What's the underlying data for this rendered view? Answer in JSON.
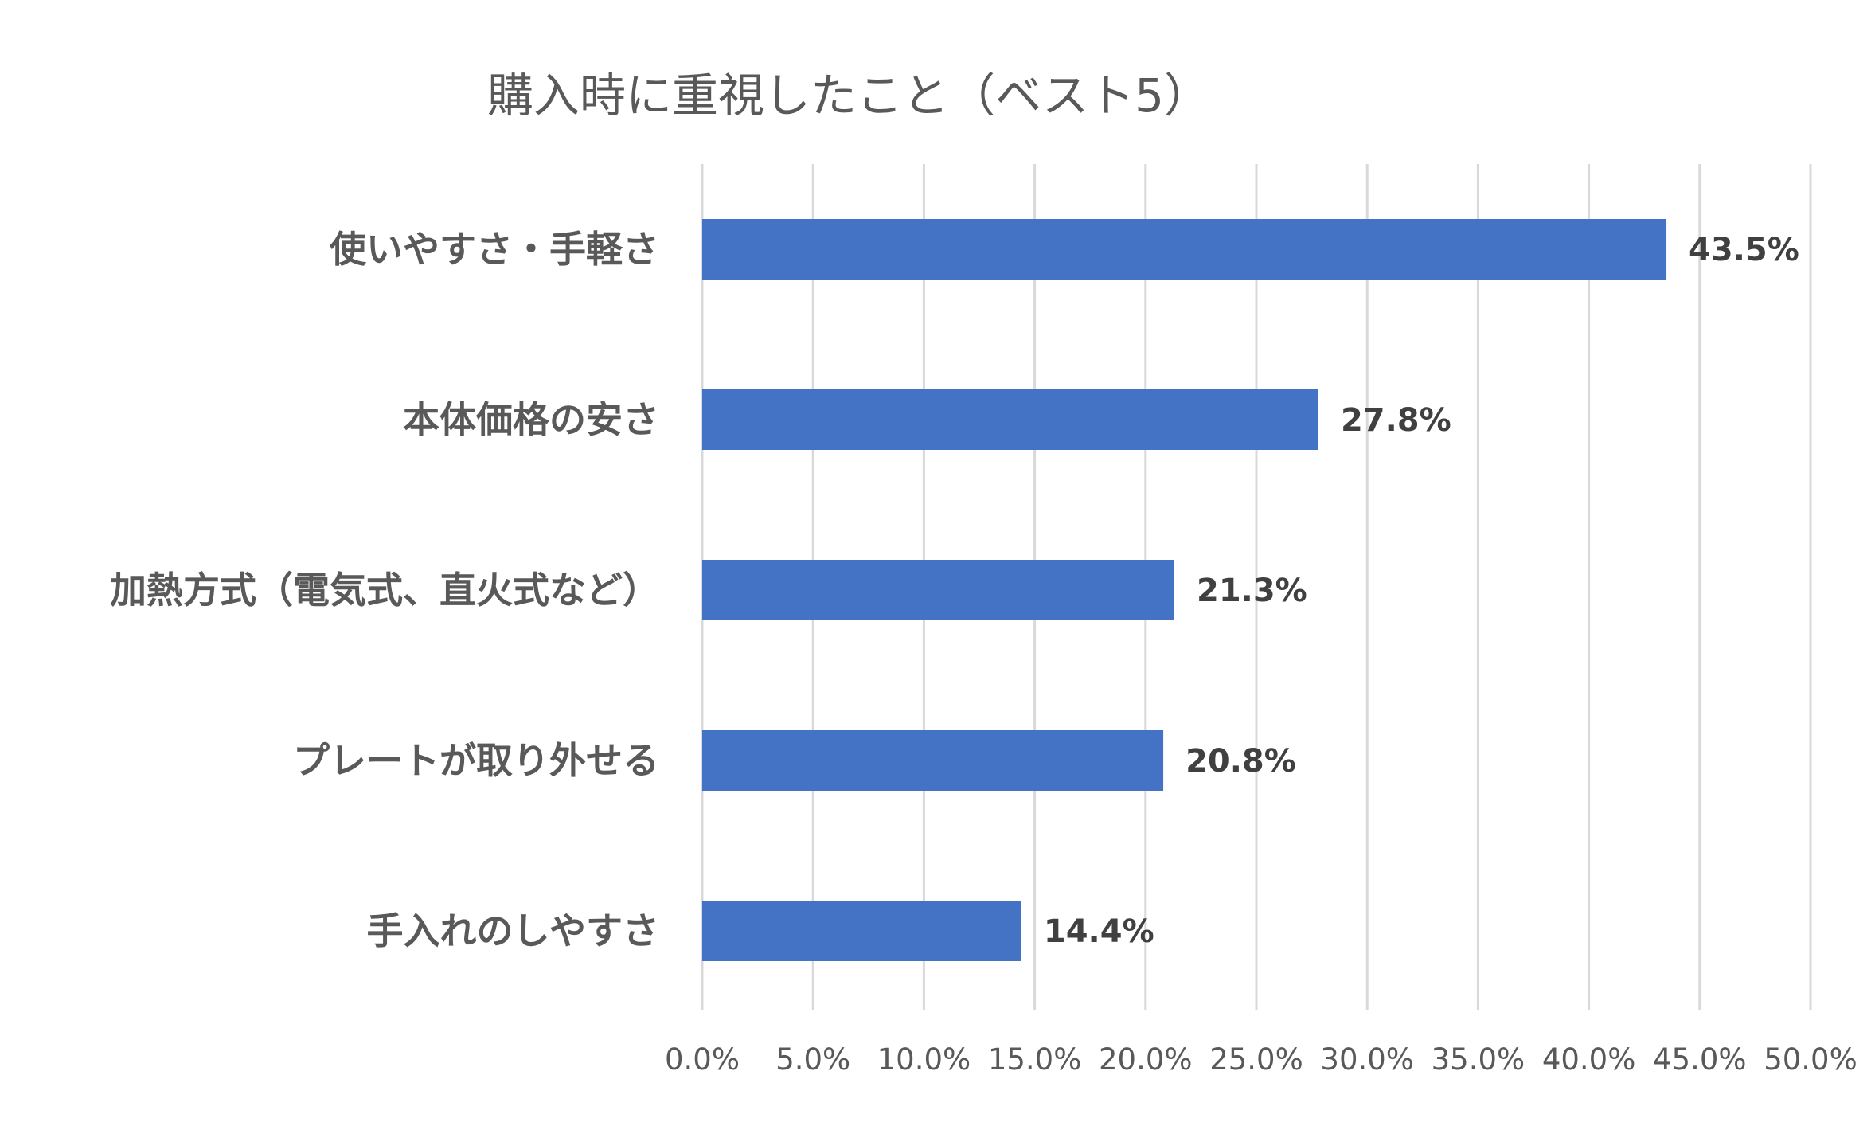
{
  "chart_data": {
    "type": "bar",
    "orientation": "horizontal",
    "title": "購入時に重視したこと（ベスト5）",
    "categories": [
      "使いやすさ・手軽さ",
      "本体価格の安さ",
      "加熱方式（電気式、直火式など）",
      "プレートが取り外せる",
      "手入れのしやすさ"
    ],
    "values": [
      43.5,
      27.8,
      21.3,
      20.8,
      14.4
    ],
    "value_labels": [
      "43.5%",
      "27.8%",
      "21.3%",
      "20.8%",
      "14.4%"
    ],
    "xlim": [
      0,
      50
    ],
    "x_ticks": [
      0,
      5,
      10,
      15,
      20,
      25,
      30,
      35,
      40,
      45,
      50
    ],
    "x_tick_labels": [
      "0.0%",
      "5.0%",
      "10.0%",
      "15.0%",
      "20.0%",
      "25.0%",
      "30.0%",
      "35.0%",
      "40.0%",
      "45.0%",
      "50.0%"
    ],
    "grid": "vertical",
    "legend": "none",
    "colors": {
      "bar": "#4472c4"
    }
  }
}
